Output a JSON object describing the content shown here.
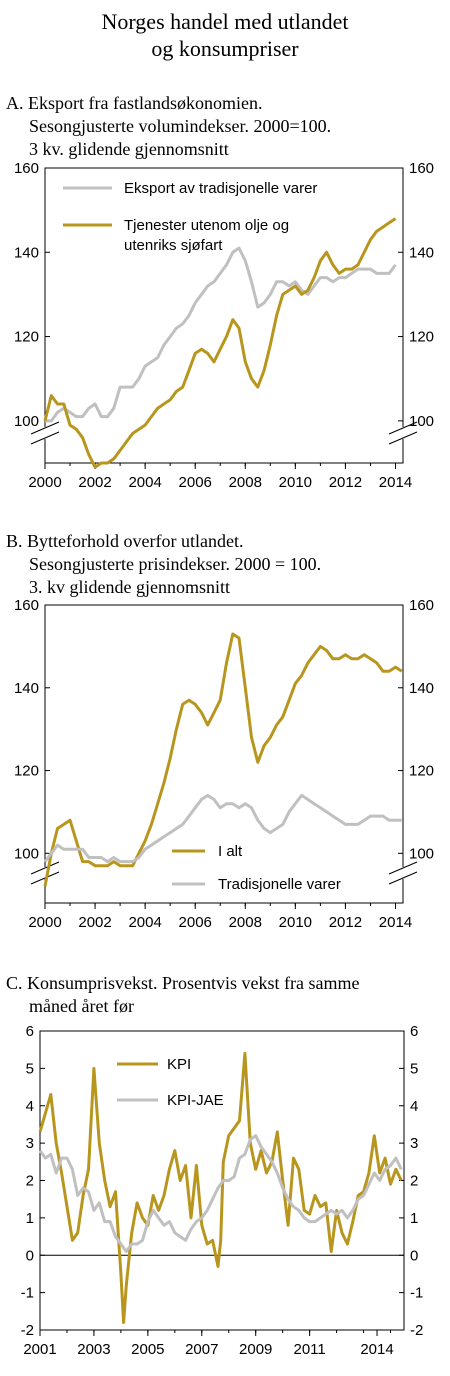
{
  "title": {
    "line1": "Norges handel med utlandet",
    "line2": "og konsumpriser"
  },
  "panels": [
    {
      "heading": [
        "A.  Eksport fra fastlandsøkonomien.",
        "Sesongjusterte volumindekser. 2000=100.",
        "3 kv. glidende gjennomsnitt"
      ],
      "legend": [
        {
          "label": "Eksport av tradisjonelle varer",
          "color": "#c0c0c0"
        },
        {
          "label": "Tjenester utenom olje og",
          "label2": "utenriks sjøfart",
          "color": "#b8961e"
        }
      ]
    },
    {
      "heading": [
        "B.  Bytteforhold overfor utlandet.",
        "Sesongjusterte prisindekser. 2000 = 100.",
        "3. kv glidende gjennomsnitt"
      ],
      "legend": [
        {
          "label": "I alt",
          "color": "#b8961e"
        },
        {
          "label": "Tradisjonelle varer",
          "color": "#c0c0c0"
        }
      ]
    },
    {
      "heading": [
        "C.  Konsumprisvekst. Prosentvis vekst fra samme",
        "måned året før"
      ],
      "legend": [
        {
          "label": "KPI",
          "color": "#b8961e"
        },
        {
          "label": "KPI-JAE",
          "color": "#c0c0c0"
        }
      ]
    }
  ],
  "chart_data": [
    {
      "type": "line",
      "title": "Eksport fra fastlandsøkonomien",
      "xlim": [
        2000,
        2014.3
      ],
      "ylim": [
        90,
        160
      ],
      "xticks": [
        "2000",
        "2002",
        "2004",
        "2006",
        "2008",
        "2010",
        "2012",
        "2014"
      ],
      "yticks": [
        "100",
        "120",
        "140",
        "160"
      ],
      "axis_break": true,
      "series": [
        {
          "name": "Eksport av tradisjonelle varer",
          "color": "#c0c0c0",
          "x": [
            2000,
            2000.25,
            2000.5,
            2000.75,
            2001,
            2001.25,
            2001.5,
            2001.75,
            2002,
            2002.25,
            2002.5,
            2002.75,
            2003,
            2003.25,
            2003.5,
            2003.75,
            2004,
            2004.25,
            2004.5,
            2004.75,
            2005,
            2005.25,
            2005.5,
            2005.75,
            2006,
            2006.25,
            2006.5,
            2006.75,
            2007,
            2007.25,
            2007.5,
            2007.75,
            2008,
            2008.25,
            2008.5,
            2008.75,
            2009,
            2009.25,
            2009.5,
            2009.75,
            2010,
            2010.25,
            2010.5,
            2010.75,
            2011,
            2011.25,
            2011.5,
            2011.75,
            2012,
            2012.25,
            2012.5,
            2012.75,
            2013,
            2013.25,
            2013.5,
            2013.75,
            2014
          ],
          "y": [
            100,
            100,
            102,
            103,
            102,
            101,
            101,
            103,
            104,
            101,
            101,
            103,
            108,
            108,
            108,
            110,
            113,
            114,
            115,
            118,
            120,
            122,
            123,
            125,
            128,
            130,
            132,
            133,
            135,
            137,
            140,
            141,
            138,
            133,
            127,
            128,
            130,
            133,
            133,
            132,
            133,
            131,
            130,
            132,
            134,
            134,
            133,
            134,
            134,
            135,
            136,
            136,
            136,
            135,
            135,
            135,
            137
          ]
        },
        {
          "name": "Tjenester utenom olje og utenriks sjøfart",
          "color": "#b8961e",
          "x": [
            2000,
            2000.25,
            2000.5,
            2000.75,
            2001,
            2001.25,
            2001.5,
            2001.75,
            2002,
            2002.25,
            2002.5,
            2002.75,
            2003,
            2003.25,
            2003.5,
            2003.75,
            2004,
            2004.25,
            2004.5,
            2004.75,
            2005,
            2005.25,
            2005.5,
            2005.75,
            2006,
            2006.25,
            2006.5,
            2006.75,
            2007,
            2007.25,
            2007.5,
            2007.75,
            2008,
            2008.25,
            2008.5,
            2008.75,
            2009,
            2009.25,
            2009.5,
            2009.75,
            2010,
            2010.25,
            2010.5,
            2010.75,
            2011,
            2011.25,
            2011.5,
            2011.75,
            2012,
            2012.25,
            2012.5,
            2012.75,
            2013,
            2013.25,
            2013.5,
            2013.75,
            2014
          ],
          "y": [
            100,
            106,
            104,
            104,
            99,
            98,
            96,
            92,
            89,
            90,
            90,
            91,
            93,
            95,
            97,
            98,
            99,
            101,
            103,
            104,
            105,
            107,
            108,
            112,
            116,
            117,
            116,
            114,
            117,
            120,
            124,
            122,
            114,
            110,
            108,
            112,
            118,
            125,
            130,
            131,
            132,
            130,
            131,
            134,
            138,
            140,
            137,
            135,
            136,
            136,
            137,
            140,
            143,
            145,
            146,
            147,
            148
          ]
        }
      ]
    },
    {
      "type": "line",
      "title": "Bytteforhold overfor utlandet",
      "xlim": [
        2000,
        2014.3
      ],
      "ylim": [
        88,
        160
      ],
      "xticks": [
        "2000",
        "2002",
        "2004",
        "2006",
        "2008",
        "2010",
        "2012",
        "2014"
      ],
      "yticks": [
        "100",
        "120",
        "140",
        "160"
      ],
      "axis_break": true,
      "series": [
        {
          "name": "I alt",
          "color": "#b8961e",
          "x": [
            2000,
            2000.25,
            2000.5,
            2000.75,
            2001,
            2001.25,
            2001.5,
            2001.75,
            2002,
            2002.25,
            2002.5,
            2002.75,
            2003,
            2003.25,
            2003.5,
            2003.75,
            2004,
            2004.25,
            2004.5,
            2004.75,
            2005,
            2005.25,
            2005.5,
            2005.75,
            2006,
            2006.25,
            2006.5,
            2006.75,
            2007,
            2007.25,
            2007.5,
            2007.75,
            2008,
            2008.25,
            2008.5,
            2008.75,
            2009,
            2009.25,
            2009.5,
            2009.75,
            2010,
            2010.25,
            2010.5,
            2010.75,
            2011,
            2011.25,
            2011.5,
            2011.75,
            2012,
            2012.25,
            2012.5,
            2012.75,
            2013,
            2013.25,
            2013.5,
            2013.75,
            2014,
            2014.25
          ],
          "y": [
            92,
            100,
            106,
            107,
            108,
            103,
            98,
            98,
            97,
            97,
            97,
            98,
            97,
            97,
            97,
            100,
            103,
            107,
            112,
            117,
            123,
            130,
            136,
            137,
            136,
            134,
            131,
            134,
            137,
            146,
            153,
            152,
            140,
            128,
            122,
            126,
            128,
            131,
            133,
            137,
            141,
            143,
            146,
            148,
            150,
            149,
            147,
            147,
            148,
            147,
            147,
            148,
            147,
            146,
            144,
            144,
            145,
            144
          ]
        },
        {
          "name": "Tradisjonelle varer",
          "color": "#c0c0c0",
          "x": [
            2000,
            2000.25,
            2000.5,
            2000.75,
            2001,
            2001.25,
            2001.5,
            2001.75,
            2002,
            2002.25,
            2002.5,
            2002.75,
            2003,
            2003.25,
            2003.5,
            2003.75,
            2004,
            2004.25,
            2004.5,
            2004.75,
            2005,
            2005.25,
            2005.5,
            2005.75,
            2006,
            2006.25,
            2006.5,
            2006.75,
            2007,
            2007.25,
            2007.5,
            2007.75,
            2008,
            2008.25,
            2008.5,
            2008.75,
            2009,
            2009.25,
            2009.5,
            2009.75,
            2010,
            2010.25,
            2010.5,
            2010.75,
            2011,
            2011.25,
            2011.5,
            2011.75,
            2012,
            2012.25,
            2012.5,
            2012.75,
            2013,
            2013.25,
            2013.5,
            2013.75,
            2014,
            2014.25
          ],
          "y": [
            98,
            100,
            102,
            101,
            101,
            101,
            101,
            99,
            99,
            99,
            98,
            99,
            98,
            98,
            98,
            99,
            101,
            102,
            103,
            104,
            105,
            106,
            107,
            109,
            111,
            113,
            114,
            113,
            111,
            112,
            112,
            111,
            112,
            111,
            108,
            106,
            105,
            106,
            107,
            110,
            112,
            114,
            113,
            112,
            111,
            110,
            109,
            108,
            107,
            107,
            107,
            108,
            109,
            109,
            109,
            108,
            108,
            108
          ]
        }
      ]
    },
    {
      "type": "line",
      "title": "Konsumprisvekst",
      "xlim": [
        2001,
        2014.5
      ],
      "ylim": [
        -2,
        6
      ],
      "xticks": [
        "2001",
        "2003",
        "2005",
        "2007",
        "2009",
        "2011",
        "2014"
      ],
      "xtick_values": [
        2001,
        2003,
        2005,
        2007,
        2009,
        2011,
        2013.5
      ],
      "yticks": [
        "-2",
        "-1",
        "0",
        "1",
        "2",
        "3",
        "4",
        "5",
        "6"
      ],
      "series": [
        {
          "name": "KPI",
          "color": "#b8961e",
          "x": [
            2001,
            2001.2,
            2001.4,
            2001.6,
            2001.8,
            2002,
            2002.2,
            2002.4,
            2002.6,
            2002.8,
            2003,
            2003.2,
            2003.4,
            2003.6,
            2003.8,
            2004,
            2004.1,
            2004.2,
            2004.4,
            2004.6,
            2004.8,
            2005,
            2005.2,
            2005.4,
            2005.6,
            2005.8,
            2006,
            2006.2,
            2006.4,
            2006.6,
            2006.8,
            2007,
            2007.2,
            2007.4,
            2007.6,
            2007.7,
            2007.8,
            2008,
            2008.2,
            2008.4,
            2008.6,
            2008.8,
            2009,
            2009.2,
            2009.4,
            2009.6,
            2009.8,
            2010,
            2010.2,
            2010.4,
            2010.6,
            2010.8,
            2011,
            2011.2,
            2011.4,
            2011.6,
            2011.8,
            2012,
            2012.2,
            2012.4,
            2012.6,
            2012.8,
            2013,
            2013.2,
            2013.4,
            2013.6,
            2013.8,
            2014,
            2014.2,
            2014.4
          ],
          "y": [
            3.3,
            3.8,
            4.3,
            3.0,
            2.2,
            1.3,
            0.4,
            0.6,
            1.6,
            2.3,
            5.0,
            3.0,
            2.0,
            1.3,
            1.7,
            -0.5,
            -1.8,
            -0.8,
            0.6,
            1.4,
            1.0,
            0.8,
            1.6,
            1.2,
            1.6,
            2.3,
            2.8,
            2.0,
            2.4,
            1.0,
            2.4,
            0.8,
            0.3,
            0.4,
            -0.3,
            0.4,
            2.5,
            3.2,
            3.4,
            3.6,
            5.4,
            3.0,
            2.3,
            2.8,
            2.2,
            2.5,
            3.3,
            2.0,
            0.8,
            2.6,
            2.3,
            1.2,
            1.1,
            1.6,
            1.3,
            1.4,
            0.1,
            1.2,
            0.6,
            0.3,
            0.9,
            1.6,
            1.7,
            2.2,
            3.2,
            2.2,
            2.6,
            1.9,
            2.3,
            2.0
          ]
        },
        {
          "name": "KPI-JAE",
          "color": "#c0c0c0",
          "x": [
            2001,
            2001.2,
            2001.4,
            2001.6,
            2001.8,
            2002,
            2002.2,
            2002.4,
            2002.6,
            2002.8,
            2003,
            2003.2,
            2003.4,
            2003.6,
            2003.8,
            2004,
            2004.2,
            2004.4,
            2004.6,
            2004.8,
            2005,
            2005.2,
            2005.4,
            2005.6,
            2005.8,
            2006,
            2006.2,
            2006.4,
            2006.6,
            2006.8,
            2007,
            2007.2,
            2007.4,
            2007.6,
            2007.8,
            2008,
            2008.2,
            2008.4,
            2008.6,
            2008.8,
            2009,
            2009.2,
            2009.4,
            2009.6,
            2009.8,
            2010,
            2010.2,
            2010.4,
            2010.6,
            2010.8,
            2011,
            2011.2,
            2011.4,
            2011.6,
            2011.8,
            2012,
            2012.2,
            2012.4,
            2012.6,
            2012.8,
            2013,
            2013.2,
            2013.4,
            2013.6,
            2013.8,
            2014,
            2014.2,
            2014.4
          ],
          "y": [
            2.8,
            2.6,
            2.7,
            2.2,
            2.6,
            2.6,
            2.3,
            1.6,
            1.8,
            1.7,
            1.2,
            1.4,
            0.9,
            0.9,
            0.5,
            0.3,
            0.1,
            0.3,
            0.3,
            0.4,
            0.9,
            1.2,
            1.0,
            0.8,
            0.9,
            0.6,
            0.5,
            0.4,
            0.7,
            0.9,
            1.0,
            1.2,
            1.5,
            1.8,
            2.0,
            2.0,
            2.1,
            2.6,
            2.7,
            3.1,
            3.2,
            2.9,
            2.7,
            2.5,
            2.2,
            1.8,
            1.5,
            1.3,
            1.2,
            1.0,
            0.9,
            0.9,
            1.0,
            1.1,
            1.2,
            1.1,
            1.2,
            1.0,
            1.2,
            1.5,
            1.6,
            1.9,
            2.2,
            2.0,
            2.3,
            2.4,
            2.6,
            2.3
          ]
        }
      ]
    }
  ]
}
